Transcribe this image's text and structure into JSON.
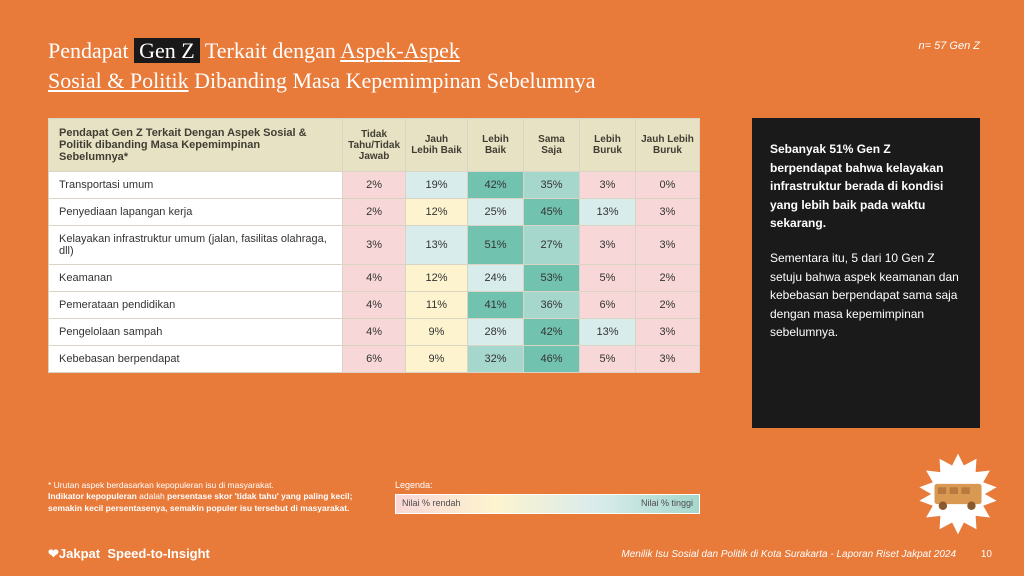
{
  "title": {
    "pre": "Pendapat ",
    "highlight": "Gen Z",
    "mid": " Terkait dengan ",
    "underline1": "Aspek-Aspek",
    "line2_u": "Sosial & Politik",
    "line2_rest": " Dibanding Masa Kepemimpinan Sebelumnya"
  },
  "sample": "n= 57 Gen Z",
  "table": {
    "header_first": "Pendapat Gen Z Terkait Dengan Aspek Sosial & Politik  dibanding Masa Kepemimpinan Sebelumnya*",
    "columns": [
      "Tidak Tahu/Tidak Jawab",
      "Jauh Lebih Baik",
      "Lebih Baik",
      "Sama Saja",
      "Lebih Buruk",
      "Jauh Lebih Buruk"
    ],
    "col_widths": [
      "62px",
      "62px",
      "56px",
      "56px",
      "56px",
      "64px"
    ],
    "rows": [
      {
        "label": "Transportasi umum",
        "cells": [
          {
            "v": "2%",
            "c": "#f7d7d7"
          },
          {
            "v": "19%",
            "c": "#d9ecec"
          },
          {
            "v": "42%",
            "c": "#72c2b0"
          },
          {
            "v": "35%",
            "c": "#a6d7cc"
          },
          {
            "v": "3%",
            "c": "#f7d7d7"
          },
          {
            "v": "0%",
            "c": "#f7d7d7"
          }
        ]
      },
      {
        "label": "Penyediaan lapangan kerja",
        "cells": [
          {
            "v": "2%",
            "c": "#f7d7d7"
          },
          {
            "v": "12%",
            "c": "#fdf4cf"
          },
          {
            "v": "25%",
            "c": "#d9ecec"
          },
          {
            "v": "45%",
            "c": "#72c2b0"
          },
          {
            "v": "13%",
            "c": "#d9ecec"
          },
          {
            "v": "3%",
            "c": "#f7d7d7"
          }
        ]
      },
      {
        "label": "Kelayakan infrastruktur umum (jalan, fasilitas olahraga, dll)",
        "cells": [
          {
            "v": "3%",
            "c": "#f7d7d7"
          },
          {
            "v": "13%",
            "c": "#d9ecec"
          },
          {
            "v": "51%",
            "c": "#72c2b0"
          },
          {
            "v": "27%",
            "c": "#a6d7cc"
          },
          {
            "v": "3%",
            "c": "#f7d7d7"
          },
          {
            "v": "3%",
            "c": "#f7d7d7"
          }
        ]
      },
      {
        "label": "Keamanan",
        "cells": [
          {
            "v": "4%",
            "c": "#f7d7d7"
          },
          {
            "v": "12%",
            "c": "#fdf4cf"
          },
          {
            "v": "24%",
            "c": "#d9ecec"
          },
          {
            "v": "53%",
            "c": "#72c2b0"
          },
          {
            "v": "5%",
            "c": "#f7d7d7"
          },
          {
            "v": "2%",
            "c": "#f7d7d7"
          }
        ]
      },
      {
        "label": "Pemerataan pendidikan",
        "cells": [
          {
            "v": "4%",
            "c": "#f7d7d7"
          },
          {
            "v": "11%",
            "c": "#fdf4cf"
          },
          {
            "v": "41%",
            "c": "#72c2b0"
          },
          {
            "v": "36%",
            "c": "#a6d7cc"
          },
          {
            "v": "6%",
            "c": "#f7d7d7"
          },
          {
            "v": "2%",
            "c": "#f7d7d7"
          }
        ]
      },
      {
        "label": "Pengelolaan sampah",
        "cells": [
          {
            "v": "4%",
            "c": "#f7d7d7"
          },
          {
            "v": "9%",
            "c": "#fdf4cf"
          },
          {
            "v": "28%",
            "c": "#d9ecec"
          },
          {
            "v": "42%",
            "c": "#72c2b0"
          },
          {
            "v": "13%",
            "c": "#d9ecec"
          },
          {
            "v": "3%",
            "c": "#f7d7d7"
          }
        ]
      },
      {
        "label": "Kebebasan berpendapat",
        "cells": [
          {
            "v": "6%",
            "c": "#f7d7d7"
          },
          {
            "v": "9%",
            "c": "#fdf4cf"
          },
          {
            "v": "32%",
            "c": "#a6d7cc"
          },
          {
            "v": "46%",
            "c": "#72c2b0"
          },
          {
            "v": "5%",
            "c": "#f7d7d7"
          },
          {
            "v": "3%",
            "c": "#f7d7d7"
          }
        ]
      }
    ]
  },
  "sidebar": {
    "p1": "Sebanyak 51% Gen Z berpendapat bahwa kelayakan infrastruktur berada di kondisi yang lebih baik pada waktu sekarang.",
    "p2": "Sementara itu, 5 dari 10 Gen Z setuju bahwa aspek keamanan dan kebebasan berpendapat sama saja dengan masa kepemimpinan sebelumnya."
  },
  "footnote": {
    "line1": "*  Urutan aspek berdasarkan kepopuleran isu di masyarakat.",
    "line2a": "Indikator kepopuleran ",
    "line2b": "adalah ",
    "line2c": "persentase skor 'tidak tahu' yang paling kecil; semakin kecil persentasenya, semakin populer isu tersebut di masyarakat."
  },
  "legend": {
    "label": "Legenda:",
    "low": "Nilai % rendah",
    "high": "Nilai % tinggi"
  },
  "brand": {
    "logo": "Jakpat",
    "tag": "Speed-to-Insight"
  },
  "source": "Menilik Isu Sosial dan Politik di Kota Surakarta - Laporan Riset Jakpat 2024",
  "page": "10"
}
